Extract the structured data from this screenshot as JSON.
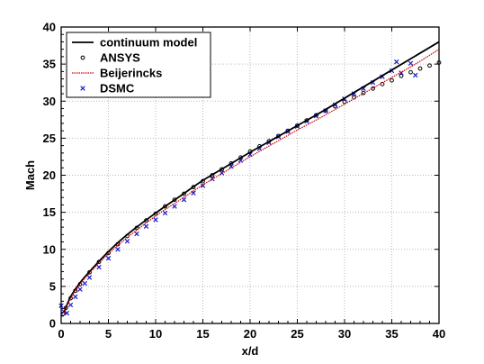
{
  "chart_data": {
    "type": "line",
    "xlabel": "x/d",
    "ylabel": "Mach",
    "xlim": [
      0,
      40
    ],
    "ylim": [
      0,
      40
    ],
    "x_ticks": [
      0,
      5,
      10,
      15,
      20,
      25,
      30,
      35,
      40
    ],
    "y_ticks": [
      0,
      5,
      10,
      15,
      20,
      25,
      30,
      35,
      40
    ],
    "grid": true,
    "legend_position": "top-left",
    "series": [
      {
        "name": "continuum model",
        "style": "line",
        "color": "#000000",
        "x": [
          0.3,
          1,
          2,
          3,
          5,
          7,
          10,
          12.5,
          15,
          17.5,
          20,
          22.5,
          25,
          27.5,
          30,
          32.5,
          35,
          37.5,
          40
        ],
        "y": [
          1.5,
          3.6,
          5.5,
          7.0,
          9.7,
          12.0,
          14.9,
          17.1,
          19.3,
          21.2,
          23.1,
          24.9,
          26.7,
          28.5,
          30.4,
          32.3,
          34.2,
          36.1,
          38.0
        ]
      },
      {
        "name": "ANSYS",
        "style": "markers-circle",
        "color": "#000000",
        "x": [
          0.2,
          0.5,
          1,
          1.5,
          2,
          3,
          4,
          5,
          6,
          7,
          8,
          9,
          10,
          11,
          12,
          13,
          14,
          15,
          16,
          17,
          18,
          19,
          20,
          21,
          22,
          23,
          24,
          25,
          26,
          27,
          28,
          29,
          30,
          31,
          32,
          33,
          34,
          35,
          36,
          37,
          38,
          39,
          40
        ],
        "y": [
          1.3,
          2.1,
          3.4,
          4.4,
          5.3,
          6.9,
          8.3,
          9.5,
          10.7,
          11.8,
          12.9,
          13.9,
          14.8,
          15.8,
          16.7,
          17.5,
          18.4,
          19.2,
          20.0,
          20.8,
          21.6,
          22.4,
          23.2,
          23.9,
          24.6,
          25.3,
          26.0,
          26.7,
          27.4,
          28.1,
          28.7,
          29.3,
          29.9,
          30.5,
          31.1,
          31.7,
          32.3,
          32.8,
          33.4,
          33.9,
          34.4,
          34.8,
          35.2
        ]
      },
      {
        "name": "Beijerincks",
        "style": "dotted-line",
        "color": "#cc0000",
        "x": [
          0.3,
          1,
          2,
          3,
          5,
          7,
          10,
          12.5,
          15,
          17.5,
          20,
          22.5,
          25,
          27.5,
          30,
          32.5,
          35,
          37.5,
          40
        ],
        "y": [
          1.4,
          3.4,
          5.3,
          6.8,
          9.4,
          11.6,
          14.5,
          16.6,
          18.7,
          20.6,
          22.5,
          24.3,
          26.1,
          27.8,
          29.6,
          31.4,
          33.2,
          35.0,
          37.0
        ]
      },
      {
        "name": "DSMC",
        "style": "markers-x",
        "color": "#1a1acc",
        "x": [
          0,
          0.3,
          0.6,
          1,
          1.5,
          2,
          2.5,
          3,
          4,
          5,
          6,
          7,
          8,
          9,
          10,
          11,
          12,
          13,
          14,
          15,
          16,
          17,
          18,
          19,
          20,
          21,
          22,
          23,
          24,
          25,
          26,
          27,
          28,
          29,
          30,
          31,
          32,
          33,
          34,
          35,
          35.5,
          36,
          37,
          37.5
        ],
        "y": [
          2.4,
          1.6,
          1.4,
          2.5,
          3.6,
          4.6,
          5.4,
          6.2,
          7.6,
          8.8,
          10.0,
          11.1,
          12.1,
          13.1,
          14.0,
          14.9,
          15.8,
          16.7,
          17.6,
          18.6,
          19.5,
          20.3,
          21.2,
          22.0,
          22.8,
          23.6,
          24.4,
          25.2,
          25.9,
          26.6,
          27.3,
          28.0,
          28.7,
          29.5,
          30.3,
          31.0,
          31.7,
          32.5,
          33.3,
          34.1,
          35.3,
          33.8,
          35.1,
          33.5
        ]
      }
    ]
  }
}
